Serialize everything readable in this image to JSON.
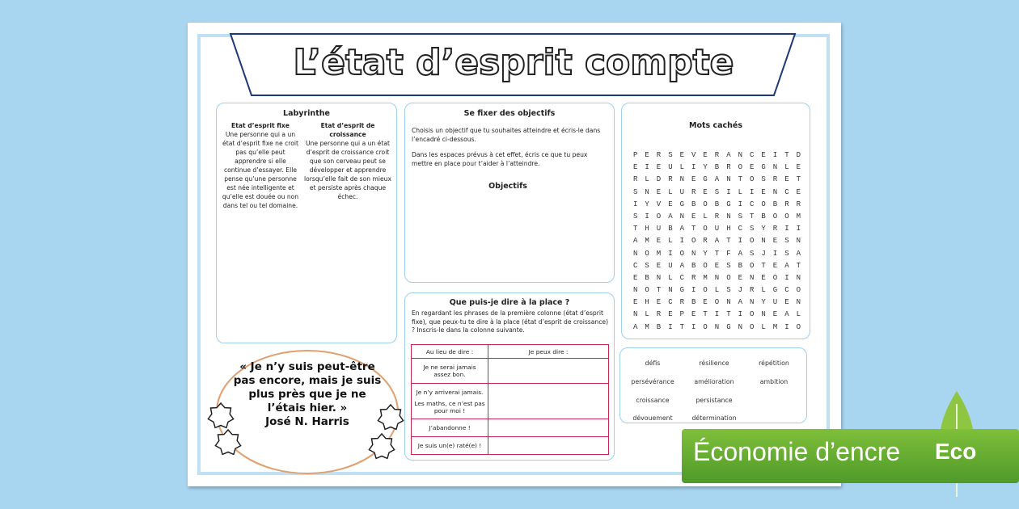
{
  "title": "L’état d’esprit compte",
  "maze": {
    "heading": "Labyrinthe",
    "fixed": {
      "heading": "Etat d’esprit fixe",
      "text": "Une personne qui a un état d’esprit fixe ne croit pas qu’elle peut apprendre si elle continue d’essayer. Elle pense qu’une personne est née intelligente et qu’elle est douée ou non dans tel ou tel domaine."
    },
    "growth": {
      "heading": "Etat d’esprit de croissance",
      "text": "Une personne qui a un état d’esprit de croissance croit que son cerveau peut se développer et apprendre lorsqu’elle fait de son mieux et persiste après chaque échec."
    }
  },
  "quote": {
    "text": "« Je n’y suis peut-être pas encore, mais je suis plus près que je ne l’étais hier. »",
    "author": "José N. Harris"
  },
  "goals": {
    "heading": "Se fixer des objectifs",
    "instructions": [
      "Choisis un objectif que tu souhaites atteindre et écris-le dans l’encadré ci-dessous.",
      "Dans les espaces prévus à cet effet, écris ce que tu peux mettre en place pour t’aider à l’atteindre."
    ],
    "box_label": "Objectifs"
  },
  "rephrase": {
    "heading": "Que puis-je dire à la place ?",
    "intro": "En regardant les phrases de la première colonne (état d’esprit fixe), que peux-tu te dire à la place (état d’esprit de croissance) ? Inscris-le dans la colonne suivante.",
    "header": [
      "Au lieu de dire :",
      "Je peux dire :"
    ],
    "rows": [
      "Je ne serai jamais assez bon.",
      "Je n’y arriverai jamais.",
      "Les maths, ce n’est pas pour moi !",
      "J’abandonne !",
      "Je suis un(e) raté(e) !"
    ]
  },
  "word_search": {
    "heading": "Mots cachés",
    "grid": [
      "PERSEVERANCEITD",
      "EIEULIYBROEGNLE",
      "RLDRNEGANTOSRET",
      "SNELURESILIENCE",
      "IYVEGBOBGICOBRR",
      "SIOANELRNSTBOOM",
      "THUBATOUHCSYRII",
      "AMELIORATIONESN",
      "NOMIONYTFASJISA",
      "CSEUABOESBOTEAT",
      "EBNLCRMNOENEOIN",
      "NOTNGIOLSJRLGCO",
      "EHECRBEONANYUEN",
      "NLREPETITIONEAL",
      "AMBITIONGNOLMIO"
    ]
  },
  "word_list": [
    "défis",
    "résilience",
    "répétition",
    "persévérance",
    "amélioration",
    "ambition",
    "croissance",
    "persistance",
    "dévouement",
    "détermination"
  ],
  "banner": {
    "label": "Économie d’encre",
    "badge": "Eco"
  }
}
